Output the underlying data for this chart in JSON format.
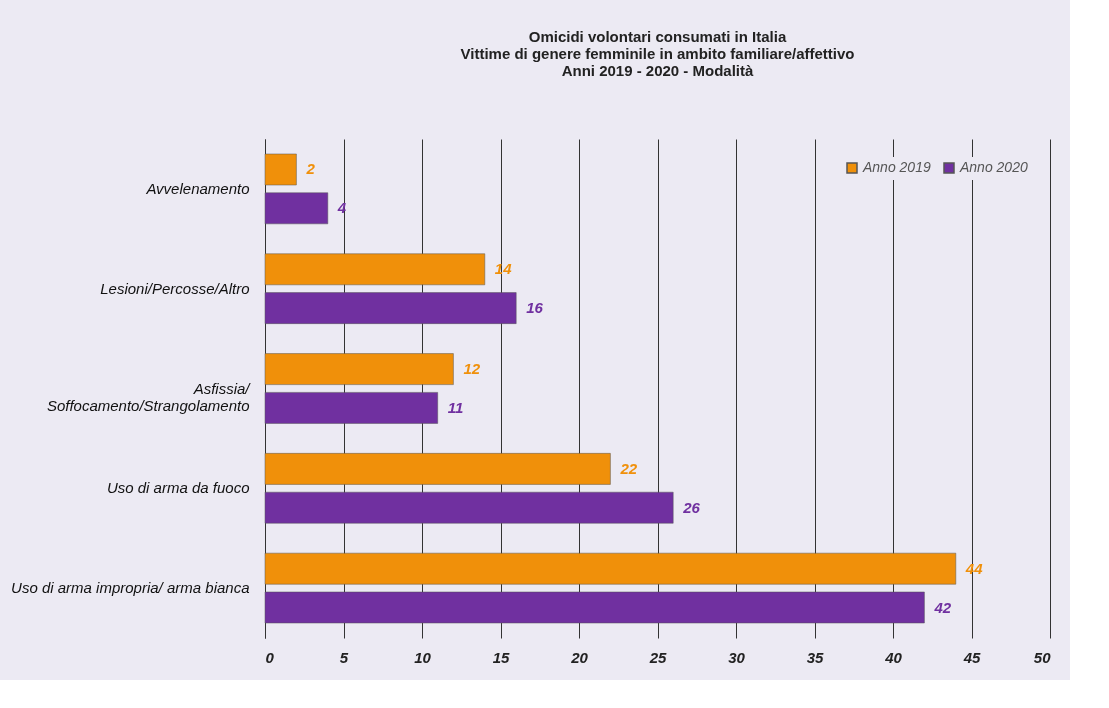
{
  "chart_data": {
    "type": "bar",
    "orientation": "horizontal",
    "title": "Omicidi volontari consumati in Italia\nVittime di genere femminile in ambito familiare/affettivo\nAnni 2019 - 2020 - Modalità",
    "categories": [
      "Avvelenamento",
      "Lesioni/Percosse/Altro",
      "Asfissia/\nSoffocamento/Strangolamento",
      "Uso di arma da fuoco",
      "Uso di arma impropria/ arma bianca"
    ],
    "series": [
      {
        "name": "Anno 2019",
        "color": "#f0900a",
        "values": [
          2,
          14,
          12,
          22,
          44
        ]
      },
      {
        "name": "Anno 2020",
        "color": "#7030a0",
        "values": [
          4,
          16,
          11,
          26,
          42
        ]
      }
    ],
    "xlim": [
      0,
      50
    ],
    "xticks": [
      0,
      5,
      10,
      15,
      20,
      25,
      30,
      35,
      40,
      45,
      50
    ],
    "grid": "x",
    "legend": "top right",
    "data_labels": true
  }
}
